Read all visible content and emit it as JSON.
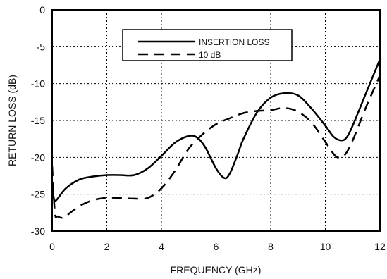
{
  "chart_data": {
    "type": "line",
    "title": "",
    "xlabel": "FREQUENCY (GHz)",
    "ylabel": "RETURN LOSS (dB)",
    "xlim": [
      0,
      12
    ],
    "ylim": [
      -30,
      0
    ],
    "x_ticks": [
      "0",
      "2",
      "4",
      "6",
      "8",
      "10",
      "12"
    ],
    "y_ticks": [
      "0",
      "-5",
      "-10",
      "-15",
      "-20",
      "-25",
      "-30"
    ],
    "grid": true,
    "legend_position": "top-center",
    "series": [
      {
        "name": "INSERTION LOSS",
        "style": "solid",
        "x": [
          0.0,
          0.05,
          0.1,
          0.2,
          0.5,
          1.0,
          1.5,
          2.0,
          2.5,
          3.0,
          3.5,
          4.0,
          4.5,
          5.0,
          5.3,
          5.6,
          6.0,
          6.3,
          6.5,
          6.8,
          7.0,
          7.5,
          8.0,
          8.5,
          9.0,
          9.5,
          10.0,
          10.3,
          10.6,
          10.8,
          11.0,
          11.5,
          12.0
        ],
        "y": [
          -23.3,
          -25.3,
          -25.9,
          -25.6,
          -24.2,
          -23.0,
          -22.6,
          -22.4,
          -22.4,
          -22.4,
          -21.5,
          -19.8,
          -18.0,
          -17.1,
          -17.3,
          -18.6,
          -21.5,
          -22.8,
          -22.2,
          -19.5,
          -17.5,
          -13.9,
          -11.9,
          -11.3,
          -11.6,
          -13.4,
          -15.7,
          -17.2,
          -17.7,
          -17.2,
          -15.7,
          -11.2,
          -6.7
        ]
      },
      {
        "name": "10 dB",
        "style": "dashed",
        "x": [
          0.0,
          0.1,
          0.2,
          0.4,
          0.6,
          1.0,
          1.5,
          2.0,
          2.5,
          3.0,
          3.5,
          4.0,
          4.5,
          5.0,
          5.5,
          6.0,
          6.5,
          7.0,
          7.5,
          8.0,
          8.5,
          9.0,
          9.5,
          10.0,
          10.4,
          10.7,
          11.0,
          11.5,
          12.0
        ],
        "y": [
          -21.2,
          -27.5,
          -28.0,
          -28.2,
          -27.7,
          -26.6,
          -25.8,
          -25.5,
          -25.5,
          -25.6,
          -25.5,
          -24.2,
          -21.8,
          -18.8,
          -16.9,
          -15.5,
          -14.7,
          -14.0,
          -13.7,
          -13.6,
          -13.3,
          -13.8,
          -15.3,
          -17.9,
          -19.9,
          -19.7,
          -17.7,
          -13.1,
          -8.9
        ]
      }
    ]
  }
}
